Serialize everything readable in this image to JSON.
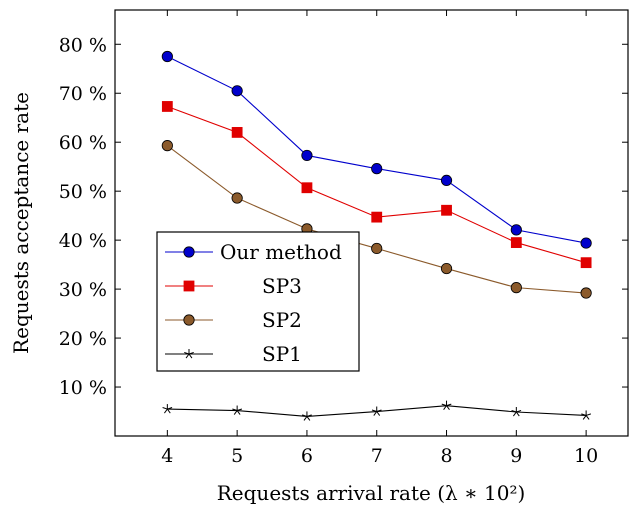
{
  "chart_data": {
    "type": "line",
    "title": "",
    "xlabel": "Requests arrival rate (λ ∗ 10²)",
    "ylabel": "Requests acceptance rate",
    "x": [
      4,
      5,
      6,
      7,
      8,
      9,
      10
    ],
    "xlim": [
      3.25,
      10.6
    ],
    "ylim": [
      0,
      87
    ],
    "x_ticks": [
      "4",
      "5",
      "6",
      "7",
      "8",
      "9",
      "10"
    ],
    "y_ticks": [
      {
        "value": 10,
        "label": "10 %"
      },
      {
        "value": 20,
        "label": "20 %"
      },
      {
        "value": 30,
        "label": "30 %"
      },
      {
        "value": 40,
        "label": "40 %"
      },
      {
        "value": 50,
        "label": "50 %"
      },
      {
        "value": 60,
        "label": "60 %"
      },
      {
        "value": 70,
        "label": "70 %"
      },
      {
        "value": 80,
        "label": "80 %"
      }
    ],
    "grid": false,
    "legend_position": "center-left",
    "series": [
      {
        "name": "Our method",
        "color": "#0000cc",
        "marker": "circle",
        "values": [
          77.5,
          70.5,
          57.3,
          54.6,
          52.2,
          42.1,
          39.4
        ]
      },
      {
        "name": "SP3",
        "color": "#e00000",
        "marker": "square",
        "values": [
          67.3,
          62.0,
          50.7,
          44.7,
          46.1,
          39.5,
          35.4
        ]
      },
      {
        "name": "SP2",
        "color": "#8b5a2b",
        "marker": "circle",
        "values": [
          59.3,
          48.6,
          42.3,
          38.3,
          34.2,
          30.3,
          29.2
        ]
      },
      {
        "name": "SP1",
        "color": "#000000",
        "marker": "star",
        "values": [
          5.5,
          5.2,
          4.0,
          5.0,
          6.2,
          4.9,
          4.2
        ]
      }
    ]
  }
}
